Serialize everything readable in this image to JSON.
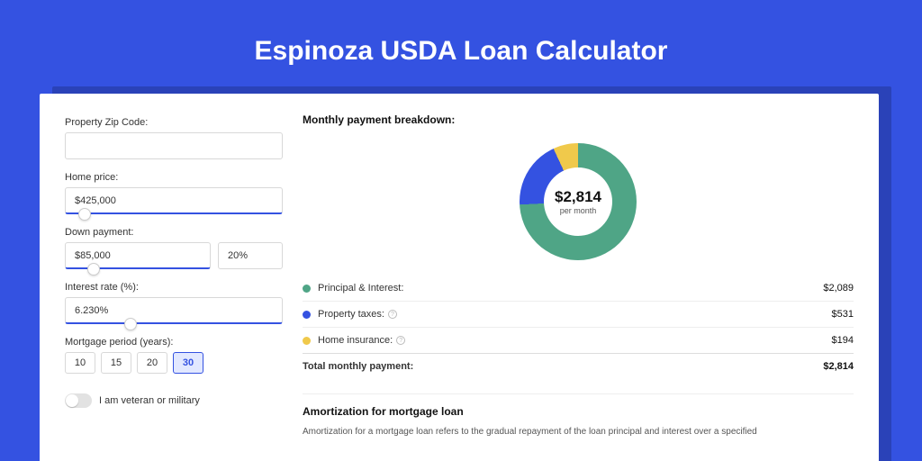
{
  "page": {
    "title": "Espinoza USDA Loan Calculator",
    "bg_color": "#3452e1",
    "shadow_color": "#2a42b8",
    "card_bg": "#ffffff"
  },
  "form": {
    "zip_label": "Property Zip Code:",
    "zip_value": "",
    "home_price_label": "Home price:",
    "home_price_value": "$425,000",
    "home_price_slider_pct": 9,
    "down_payment_label": "Down payment:",
    "down_payment_value": "$85,000",
    "down_payment_pct_value": "20%",
    "down_payment_slider_pct": 20,
    "interest_label": "Interest rate (%):",
    "interest_value": "6.230%",
    "interest_slider_pct": 30,
    "period_label": "Mortgage period (years):",
    "period_options": [
      "10",
      "15",
      "20",
      "30"
    ],
    "period_active_index": 3,
    "veteran_label": "I am veteran or military",
    "veteran_on": false
  },
  "breakdown": {
    "title": "Monthly payment breakdown:",
    "donut": {
      "type": "donut",
      "center_amount": "$2,814",
      "center_sub": "per month",
      "segments": [
        {
          "label": "Principal & Interest:",
          "value": "$2,089",
          "pct": 74.2,
          "color": "#4fa586"
        },
        {
          "label": "Property taxes:",
          "value": "$531",
          "pct": 18.9,
          "color": "#3452e1"
        },
        {
          "label": "Home insurance:",
          "value": "$194",
          "pct": 6.9,
          "color": "#f0c94b"
        }
      ]
    },
    "total_label": "Total monthly payment:",
    "total_value": "$2,814"
  },
  "amort": {
    "title": "Amortization for mortgage loan",
    "text": "Amortization for a mortgage loan refers to the gradual repayment of the loan principal and interest over a specified"
  }
}
